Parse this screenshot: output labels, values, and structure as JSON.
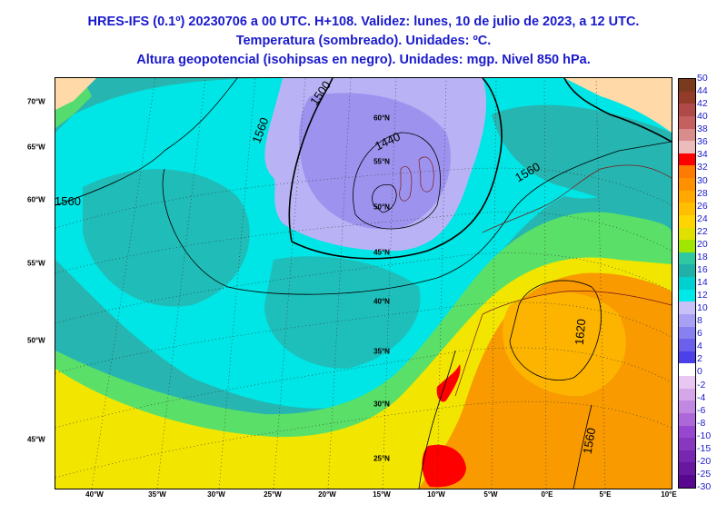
{
  "title": {
    "line1": "HRES-IFS (0.1º) 20230706 a 00 UTC. H+108. Validez: lunes, 10 de julio de 2023, a 12 UTC.",
    "line2": "Temperatura (sombreado). Unidades: ºC.",
    "line3": "Altura geopotencial (isohipsas en negro). Unidades: mgp. Nivel 850 hPa."
  },
  "map": {
    "longitude_labels": [
      "40°W",
      "35°W",
      "30°W",
      "25°W",
      "20°W",
      "15°W",
      "10°W",
      "5°W",
      "0°E",
      "5°E",
      "10°E"
    ],
    "side_latitude_labels": [
      "70°W",
      "65°W",
      "60°W",
      "55°W",
      "50°W",
      "45°W"
    ],
    "grid_latitude_labels": [
      "60°N",
      "55°N",
      "50°N",
      "45°N",
      "40°N",
      "35°N",
      "30°N",
      "25°N"
    ],
    "contour_labels": [
      "1500",
      "1560",
      "1440",
      "1560",
      "1560",
      "1620",
      "1560"
    ],
    "colors": {
      "land_cold": "#ffd9a8",
      "cyan": "#00e5e5",
      "teal": "#26b5b0",
      "lavender": "#b9b3f5",
      "purple": "#9d93ef",
      "green": "#5ae068",
      "yellow": "#f2e600",
      "orange": "#f89a00",
      "orange_light": "#fcb400",
      "red": "#ff0000"
    }
  },
  "colorbar": {
    "labels": [
      "50",
      "44",
      "42",
      "40",
      "38",
      "36",
      "34",
      "32",
      "30",
      "28",
      "26",
      "24",
      "22",
      "20",
      "18",
      "16",
      "14",
      "12",
      "10",
      "8",
      "6",
      "4",
      "2",
      "0",
      "-2",
      "-4",
      "-6",
      "-8",
      "-10",
      "-15",
      "-20",
      "-25",
      "-30"
    ],
    "colors": [
      "#7a3a1e",
      "#943c2a",
      "#b04a4a",
      "#c46060",
      "#d88c8c",
      "#ecbcbc",
      "#ff0000",
      "#ff7a00",
      "#ff9000",
      "#ffa800",
      "#ffbe00",
      "#ffd400",
      "#e0e000",
      "#a0e600",
      "#30c8a0",
      "#20b0a8",
      "#00d0d0",
      "#00e8e8",
      "#c8c0f8",
      "#a8a0f4",
      "#8880f0",
      "#6a60ec",
      "#4c40e8",
      "#ffffff",
      "#e8c8f0",
      "#d4a8e8",
      "#c088e0",
      "#ac68d8",
      "#9848d0",
      "#8838c0",
      "#7828b0",
      "#6818a0",
      "#580890"
    ]
  }
}
